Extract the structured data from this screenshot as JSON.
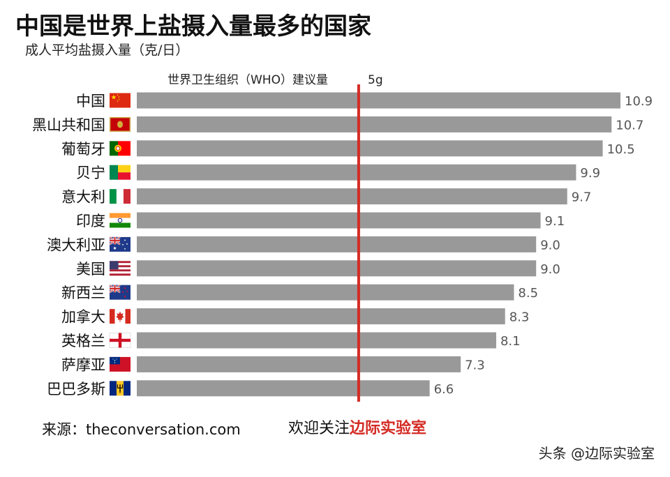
{
  "chart_data": {
    "type": "bar",
    "orientation": "horizontal",
    "title": "中国是世界上盐摄入量最多的国家",
    "subtitle": "成人平均盐摄入量（克/日）",
    "categories": [
      "中国",
      "黑山共和国",
      "葡萄牙",
      "贝宁",
      "意大利",
      "印度",
      "澳大利亚",
      "美国",
      "新西兰",
      "加拿大",
      "英格兰",
      "萨摩亚",
      "巴巴多斯"
    ],
    "values": [
      10.9,
      10.7,
      10.5,
      9.9,
      9.7,
      9.1,
      9.0,
      9.0,
      8.5,
      8.3,
      8.1,
      7.3,
      6.6
    ],
    "value_labels": [
      "10.9",
      "10.7",
      "10.5",
      "9.9",
      "9.7",
      "9.1",
      "9.0",
      "9.0",
      "8.5",
      "8.3",
      "8.1",
      "7.3",
      "6.6"
    ],
    "reference_line": {
      "label": "世界卫生组织（WHO）建议量",
      "value_label": "5g",
      "value": 5,
      "color": "#d42b24"
    },
    "xlim": [
      0,
      10.9
    ],
    "bar_color": "#999999",
    "grid": false,
    "legend": "none"
  },
  "flags": [
    "china",
    "montenegro",
    "portugal",
    "benin",
    "italy",
    "india",
    "australia",
    "usa",
    "new-zealand",
    "canada",
    "england",
    "samoa",
    "barbados"
  ],
  "footer": {
    "source": "来源：theconversation.com",
    "follow_prefix": "欢迎关注",
    "follow_brand": "边际实验室",
    "brand_color": "#d42b24"
  },
  "watermark": "头条 @边际实验室"
}
